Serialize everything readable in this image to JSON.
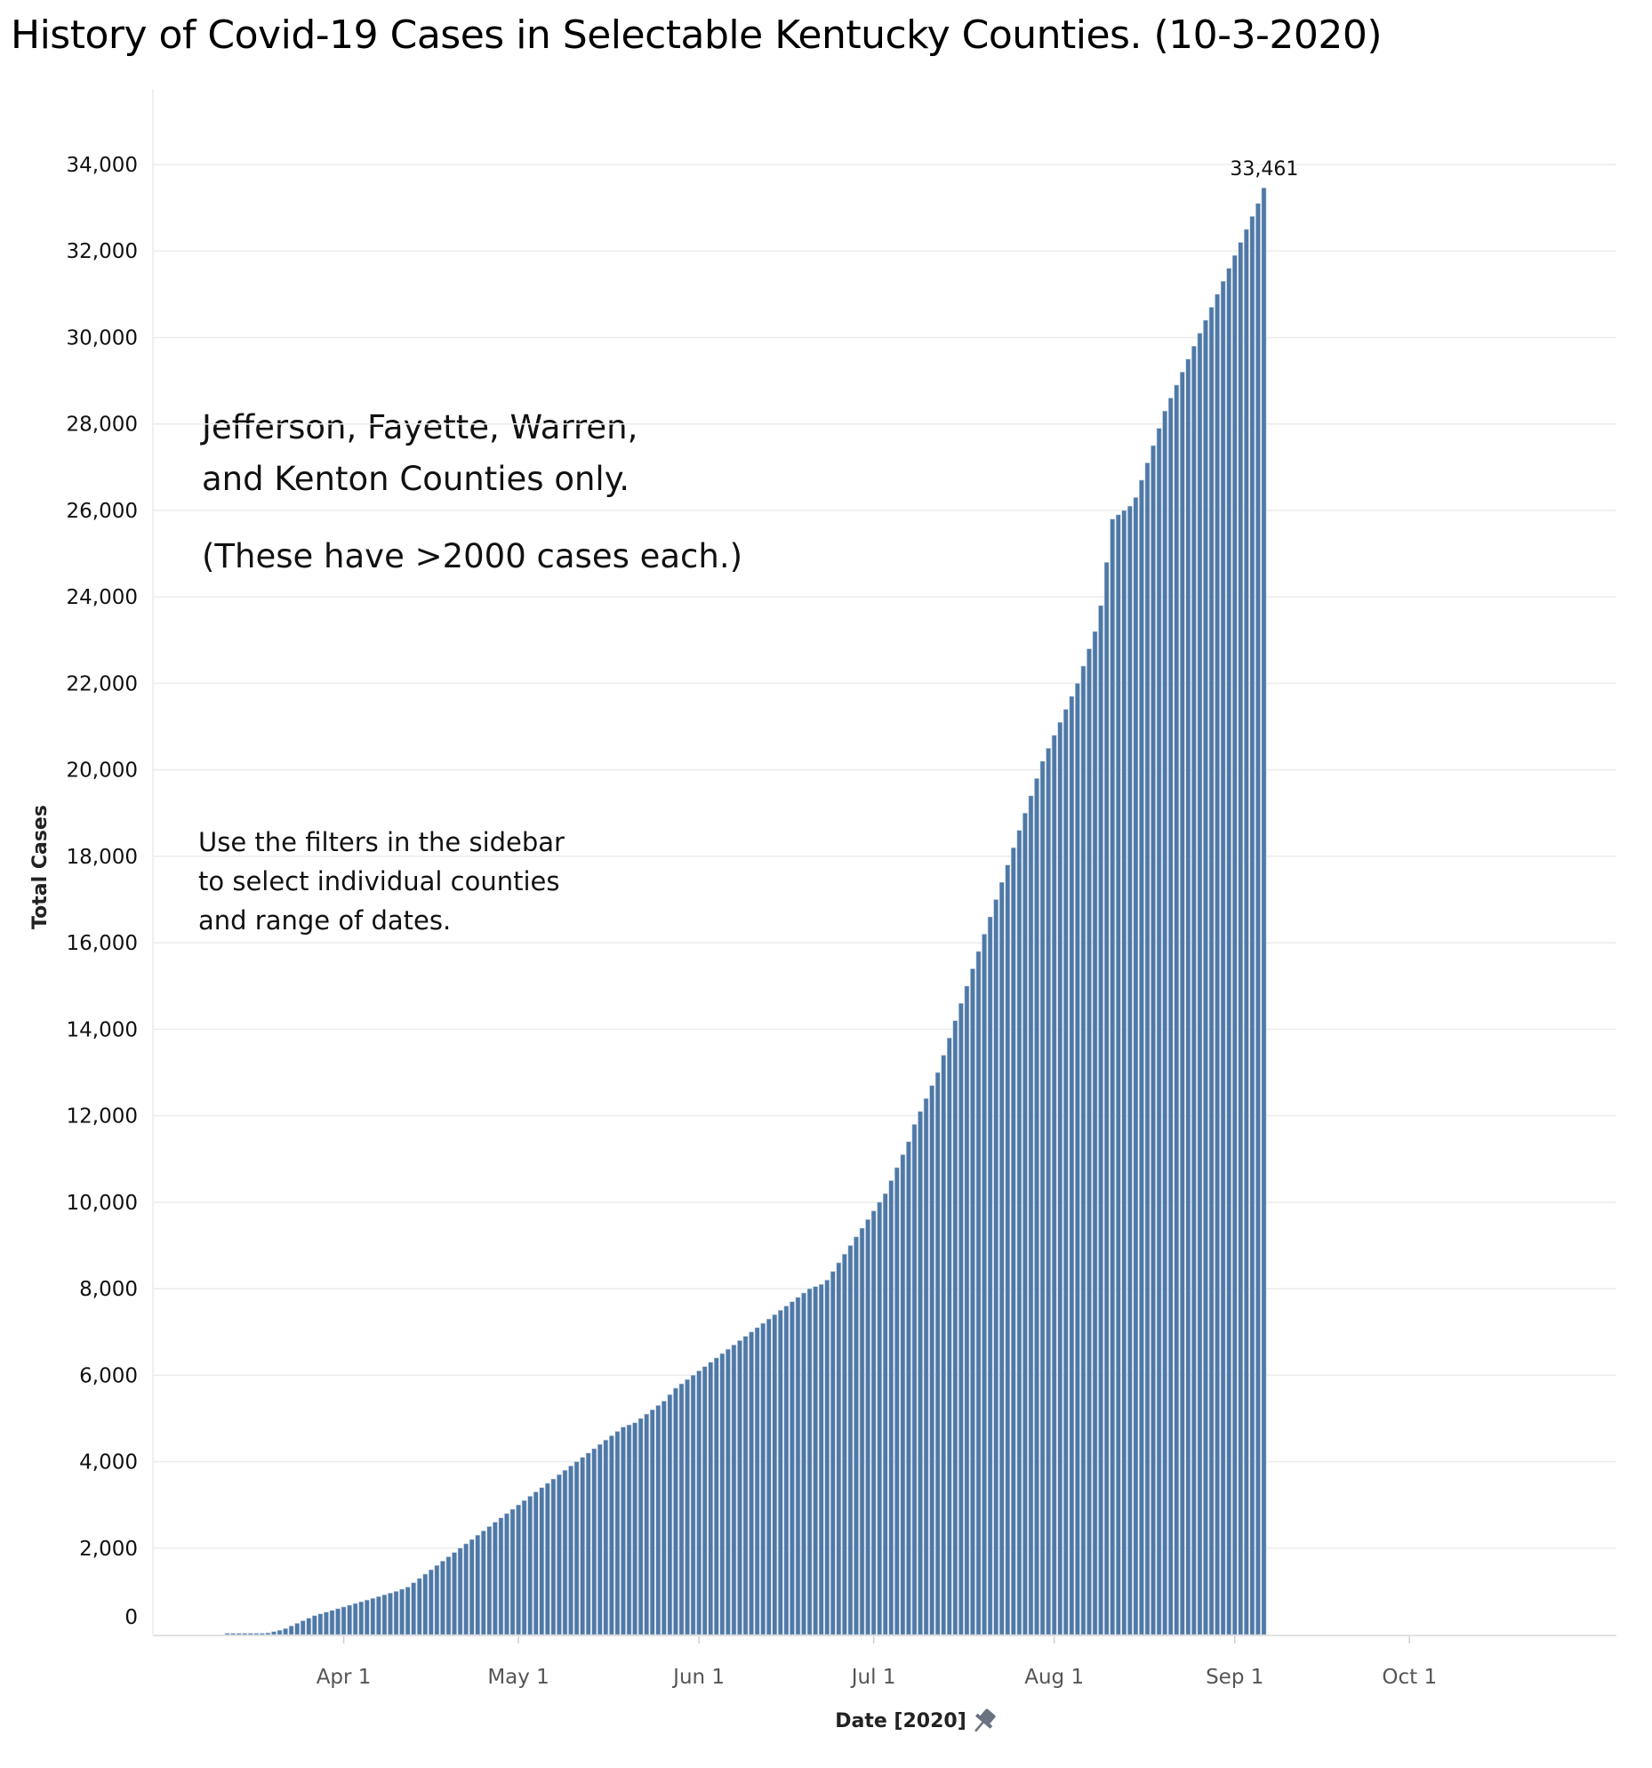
{
  "title": "History of Covid-19 Cases in Selectable Kentucky Counties. (10-3-2020)",
  "annotations": {
    "counties_line1": "Jefferson, Fayette, Warren,",
    "counties_line2": "and Kenton Counties only.",
    "threshold": "(These have >2000 cases each.)",
    "filters_line1": "Use the filters in the sidebar",
    "filters_line2": "to select individual counties",
    "filters_line3": "and range of dates."
  },
  "colors": {
    "bar": "#4e79a7",
    "bar_edge": "#c7d3e3",
    "grid": "#ececec",
    "pin": "#6b7280"
  },
  "icons": {
    "pin": "pin-icon"
  },
  "chart_data": {
    "type": "bar",
    "xlabel": "Date [2020]",
    "ylabel": "Total Cases",
    "ylim": [
      0,
      35000
    ],
    "yticks": [
      0,
      2000,
      4000,
      6000,
      8000,
      10000,
      12000,
      14000,
      16000,
      18000,
      20000,
      22000,
      24000,
      26000,
      28000,
      30000,
      32000,
      34000
    ],
    "ytick_labels": [
      "0",
      "2,000",
      "4,000",
      "6,000",
      "8,000",
      "10,000",
      "12,000",
      "14,000",
      "16,000",
      "18,000",
      "20,000",
      "22,000",
      "24,000",
      "26,000",
      "28,000",
      "30,000",
      "32,000",
      "34,000"
    ],
    "xticks": [
      "Apr 1",
      "May 1",
      "Jun 1",
      "Jul 1",
      "Aug 1",
      "Sep 1",
      "Oct 1"
    ],
    "x_start": "2020-03-12",
    "grid": true,
    "last_value_label": "33,461",
    "values": [
      0,
      0,
      0,
      0,
      0,
      10,
      20,
      40,
      70,
      100,
      140,
      200,
      260,
      320,
      380,
      440,
      480,
      520,
      560,
      600,
      640,
      680,
      720,
      760,
      800,
      840,
      880,
      920,
      960,
      1000,
      1050,
      1100,
      1200,
      1300,
      1400,
      1500,
      1600,
      1700,
      1800,
      1900,
      2000,
      2100,
      2200,
      2300,
      2400,
      2500,
      2600,
      2700,
      2800,
      2900,
      3000,
      3100,
      3200,
      3300,
      3400,
      3500,
      3600,
      3700,
      3800,
      3900,
      4000,
      4100,
      4200,
      4300,
      4400,
      4500,
      4600,
      4700,
      4800,
      4850,
      4900,
      5000,
      5100,
      5200,
      5300,
      5400,
      5550,
      5700,
      5800,
      5900,
      6000,
      6100,
      6200,
      6300,
      6400,
      6500,
      6600,
      6700,
      6800,
      6900,
      7000,
      7100,
      7200,
      7300,
      7400,
      7500,
      7600,
      7700,
      7800,
      7900,
      8000,
      8050,
      8100,
      8200,
      8400,
      8600,
      8800,
      9000,
      9200,
      9400,
      9600,
      9800,
      10000,
      10200,
      10500,
      10800,
      11100,
      11400,
      11800,
      12100,
      12400,
      12700,
      13000,
      13400,
      13800,
      14200,
      14600,
      15000,
      15400,
      15800,
      16200,
      16600,
      17000,
      17400,
      17800,
      18200,
      18600,
      19000,
      19400,
      19800,
      20200,
      20500,
      20800,
      21100,
      21400,
      21700,
      22000,
      22400,
      22800,
      23200,
      23800,
      24800,
      25800,
      25900,
      26000,
      26100,
      26300,
      26700,
      27100,
      27500,
      27900,
      28300,
      28600,
      28900,
      29200,
      29500,
      29800,
      30100,
      30400,
      30700,
      31000,
      31300,
      31600,
      31900,
      32200,
      32500,
      32800,
      33100,
      33461
    ]
  }
}
